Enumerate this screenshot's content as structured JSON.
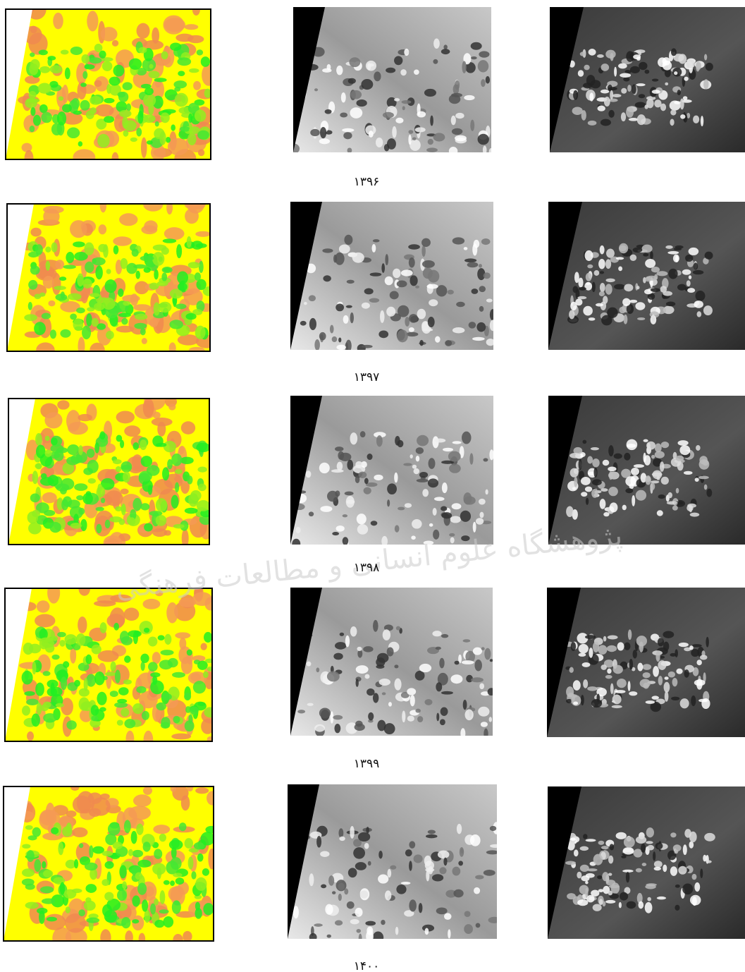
{
  "figure": {
    "rows": [
      {
        "year": "۱۳۹۶"
      },
      {
        "year": "۱۳۹۷"
      },
      {
        "year": "۱۳۹۸"
      },
      {
        "year": "۱۳۹۹"
      },
      {
        "year": "۱۴۰۰"
      }
    ]
  },
  "watermark": "پژوهشگاه علوم انسانی و مطالعات فرهنگی"
}
